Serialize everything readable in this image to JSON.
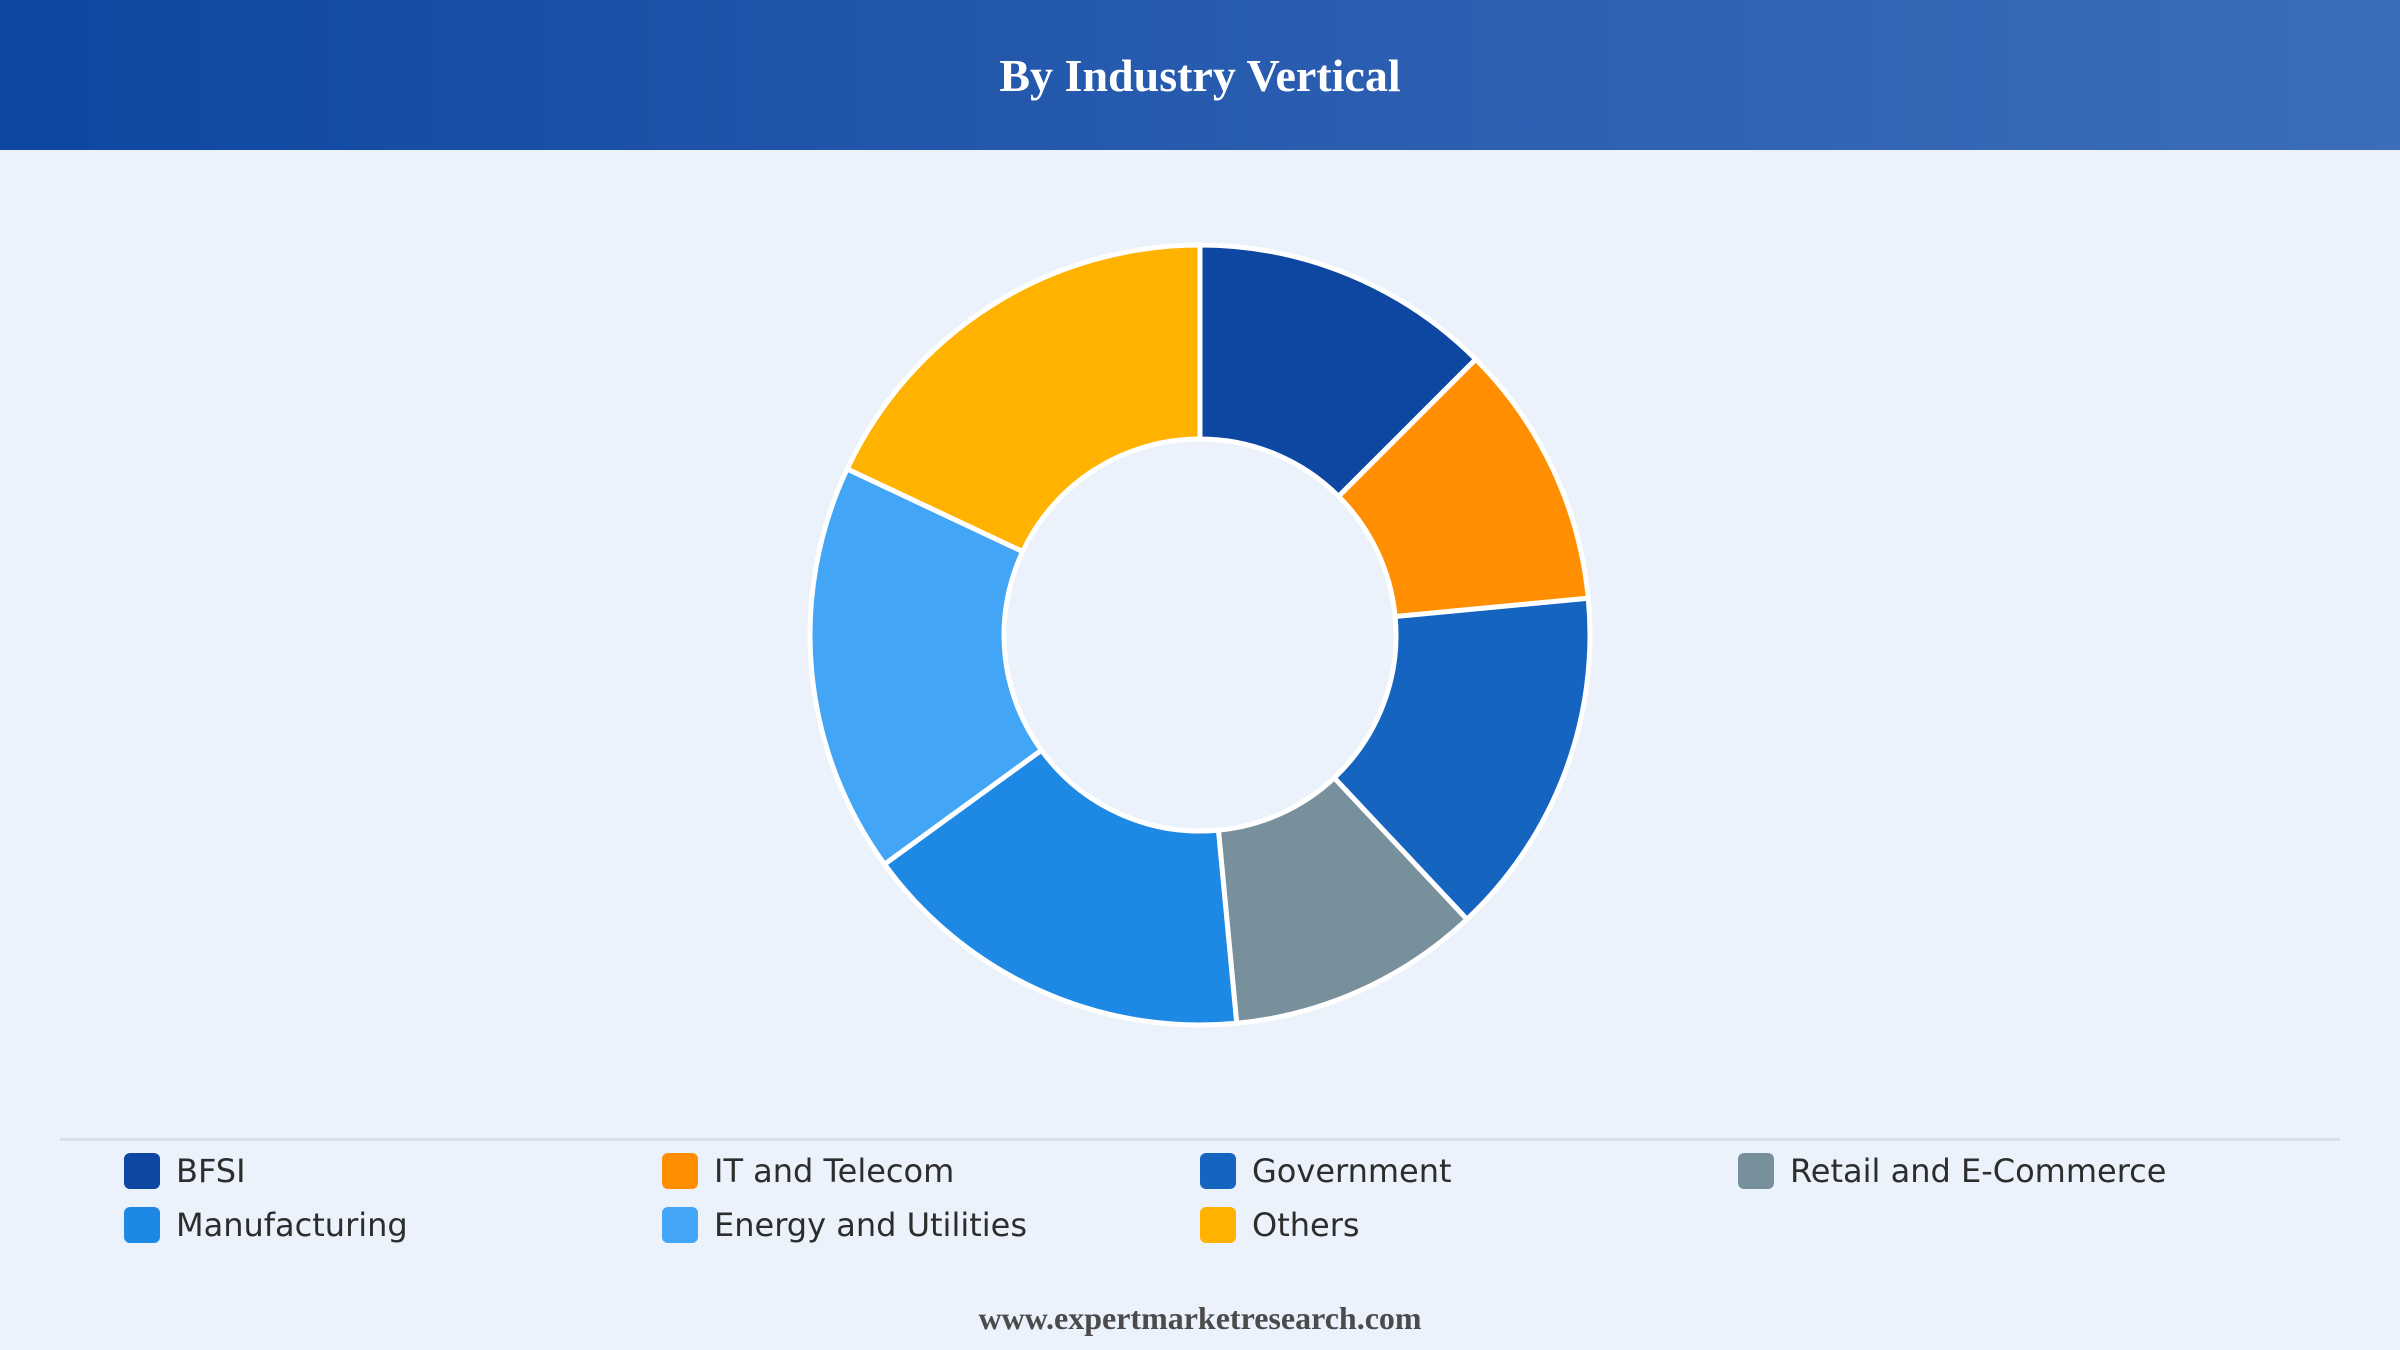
{
  "header": {
    "title": "By Industry Vertical"
  },
  "footer": {
    "url": "www.expertmarketresearch.com"
  },
  "colors": {
    "header_start": "#0d47a1",
    "header_end": "#3b6db8",
    "background": "#ebf2fc"
  },
  "chart_data": {
    "type": "pie",
    "donut": true,
    "title": "By Industry Vertical",
    "legend_position": "bottom",
    "slices": [
      {
        "label": "BFSI",
        "value": 12.5,
        "color": "#0d47a1"
      },
      {
        "label": "IT and Telecom",
        "value": 11.0,
        "color": "#ff8f00"
      },
      {
        "label": "Government",
        "value": 14.5,
        "color": "#1565c0"
      },
      {
        "label": "Retail and E-Commerce",
        "value": 10.5,
        "color": "#78909c"
      },
      {
        "label": "Manufacturing",
        "value": 16.5,
        "color": "#1e88e5"
      },
      {
        "label": "Energy and Utilities",
        "value": 17.0,
        "color": "#42a5f5"
      },
      {
        "label": "Others",
        "value": 18.0,
        "color": "#ffb300"
      }
    ]
  }
}
